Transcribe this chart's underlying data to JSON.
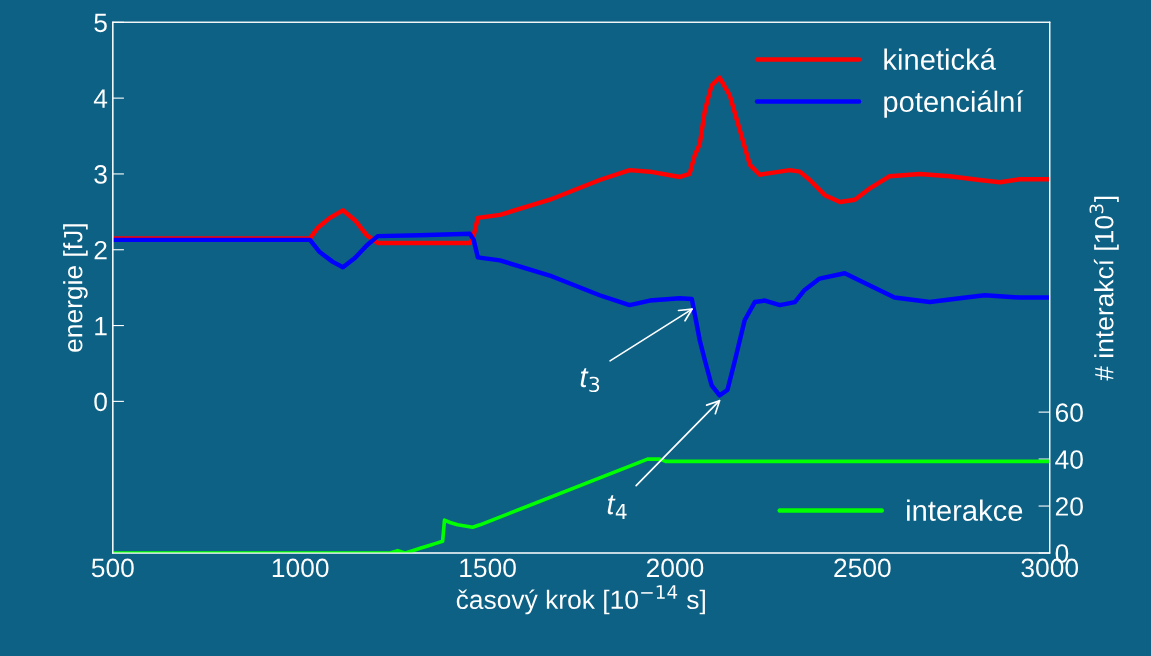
{
  "chart_data": {
    "type": "line",
    "xlabel": "časový krok [10$^{−14}$ s]",
    "ylabel": "energie [fJ]",
    "y2label": "# interakcí [10$^{3}$]",
    "xlim": [
      500,
      3000
    ],
    "xticks": [
      500,
      1000,
      1500,
      2000,
      2500,
      3000
    ],
    "ylim": [
      -2,
      5
    ],
    "yticks": [
      0,
      1,
      2,
      3,
      4,
      5
    ],
    "y2lim": [
      0,
      226
    ],
    "y2ticks": [
      0,
      20,
      40,
      60
    ],
    "grid": false,
    "legend": "top right",
    "series": [
      {
        "name": "kinetická",
        "color": "#ff0000",
        "x": [
          500,
          1026,
          1047,
          1079,
          1114,
          1146,
          1178,
          1207,
          1319,
          1453,
          1463,
          1474,
          1533,
          1666,
          1799,
          1879,
          1933,
          2013,
          2039,
          2053,
          2066,
          2080,
          2098,
          2119,
          2146,
          2173,
          2200,
          2226,
          2253,
          2306,
          2333,
          2360,
          2400,
          2440,
          2480,
          2520,
          2573,
          2653,
          2733,
          2813,
          2867,
          2920,
          3000
        ],
        "values": [
          2.15,
          2.15,
          2.29,
          2.42,
          2.52,
          2.39,
          2.19,
          2.09,
          2.09,
          2.09,
          2.19,
          2.42,
          2.46,
          2.66,
          2.92,
          3.05,
          3.03,
          2.96,
          3.0,
          3.25,
          3.39,
          3.84,
          4.17,
          4.27,
          4.04,
          3.58,
          3.12,
          2.99,
          3.01,
          3.05,
          3.03,
          2.92,
          2.72,
          2.63,
          2.66,
          2.81,
          2.97,
          3.0,
          2.97,
          2.92,
          2.89,
          2.93,
          2.93
        ]
      },
      {
        "name": "potenciální",
        "color": "#0000ff",
        "x": [
          500,
          1026,
          1052,
          1087,
          1114,
          1146,
          1178,
          1207,
          1319,
          1453,
          1463,
          1474,
          1533,
          1666,
          1799,
          1879,
          1933,
          2013,
          2045,
          2056,
          2066,
          2080,
          2098,
          2119,
          2140,
          2160,
          2186,
          2213,
          2240,
          2280,
          2320,
          2346,
          2386,
          2453,
          2520,
          2586,
          2680,
          2760,
          2827,
          2920,
          3000
        ],
        "values": [
          2.13,
          2.13,
          1.97,
          1.84,
          1.77,
          1.89,
          2.06,
          2.18,
          2.19,
          2.21,
          2.13,
          1.9,
          1.86,
          1.66,
          1.4,
          1.27,
          1.33,
          1.36,
          1.35,
          1.07,
          0.81,
          0.54,
          0.21,
          0.08,
          0.15,
          0.54,
          1.07,
          1.31,
          1.33,
          1.27,
          1.31,
          1.47,
          1.62,
          1.69,
          1.53,
          1.37,
          1.31,
          1.36,
          1.4,
          1.37,
          1.37
        ]
      },
      {
        "name": "interakce",
        "color": "#00ff00",
        "axis": "y2",
        "x": [
          500,
          1240,
          1260,
          1280,
          1300,
          1320,
          1340,
          1360,
          1380,
          1385,
          1400,
          1420,
          1460,
          1480,
          1927,
          1960,
          1975,
          3000
        ],
        "values": [
          0,
          0,
          1,
          0,
          1,
          2,
          3,
          4,
          5,
          14,
          13,
          12,
          11,
          12,
          40,
          40,
          39,
          39
        ]
      }
    ],
    "annotations": [
      {
        "text": "t$_{3}$",
        "x": 2053,
        "y": 1.24
      },
      {
        "text": "t$_{4}$",
        "x": 2125,
        "y": 0.04
      }
    ]
  }
}
